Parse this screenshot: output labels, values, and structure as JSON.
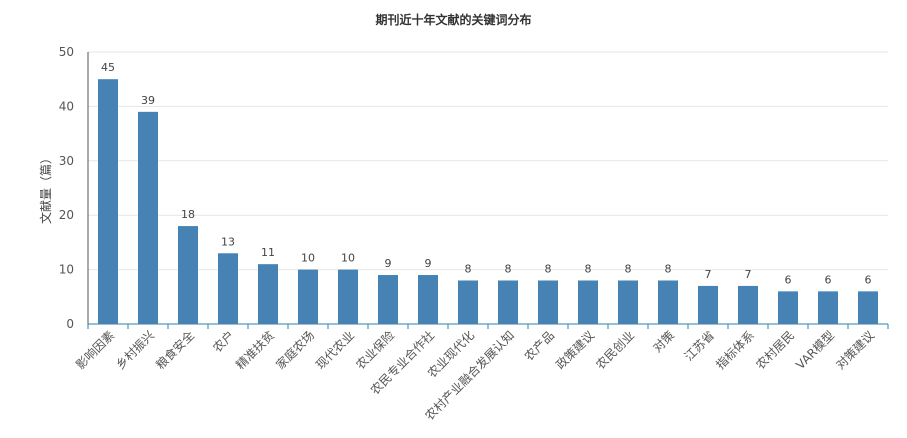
{
  "chart_data": {
    "type": "bar",
    "title": "期刊近十年文献的关键词分布",
    "ylabel": "文献量（篇）",
    "xlabel": "",
    "ylim": [
      0,
      50
    ],
    "yticks": [
      0,
      10,
      20,
      30,
      40,
      50
    ],
    "grid": true,
    "bar_color": "#4682b4",
    "categories": [
      "影响因素",
      "乡村振兴",
      "粮食安全",
      "农户",
      "精准扶贫",
      "家庭农场",
      "现代农业",
      "农业保险",
      "农民专业合作社",
      "农业现代化",
      "农村产业融合发展认知",
      "农产品",
      "政策建议",
      "农民创业",
      "对策",
      "江苏省",
      "指标体系",
      "农村居民",
      "VAR模型",
      "对策建议"
    ],
    "values": [
      45,
      39,
      18,
      13,
      11,
      10,
      10,
      9,
      9,
      8,
      8,
      8,
      8,
      8,
      8,
      7,
      7,
      6,
      6,
      6
    ]
  }
}
